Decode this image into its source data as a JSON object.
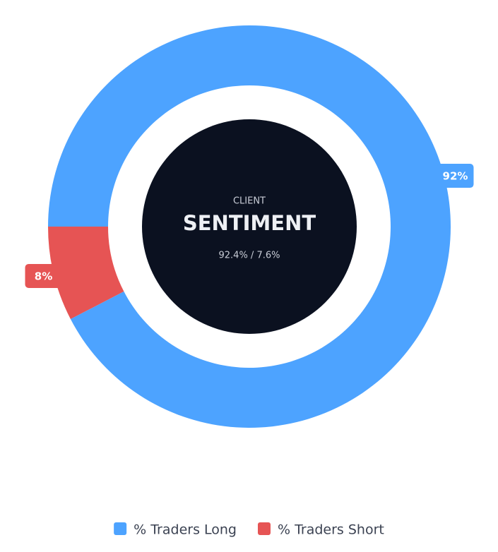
{
  "chart_data": {
    "type": "doughnut",
    "overline": "CLIENT",
    "title": "SENTIMENT",
    "subtitle": "92.4% / 7.6%",
    "categories": [
      "% Traders Long",
      "% Traders Short"
    ],
    "values": [
      92.4,
      7.6
    ],
    "value_labels": [
      "92%",
      "8%"
    ],
    "colors": [
      "#4da3ff",
      "#e65454"
    ]
  }
}
